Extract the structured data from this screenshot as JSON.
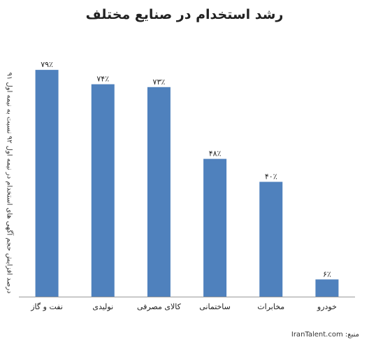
{
  "chart_data": {
    "type": "bar",
    "title": "رشد استخدام در صنایع مختلف",
    "ylabel": "درصد افزایش حجم آگهی های استخدام در نیمه اول ۹۲ نسبت به نیمه اول ۹۱",
    "xlabel": "",
    "categories": [
      "نفت و گاز",
      "نولیدی",
      "کالای مصرفی",
      "ساختمانی",
      "مخابرات",
      "خودرو"
    ],
    "values": [
      79,
      74,
      73,
      48,
      40,
      6
    ],
    "data_labels": [
      "۷۹٪",
      "۷۴٪",
      "۷۳٪",
      "۴۸٪",
      "۴۰٪",
      "۶٪"
    ],
    "ylim": [
      0,
      80
    ],
    "grid": false,
    "legend": "none",
    "bar_color": "#4f81bd"
  },
  "source": {
    "label": "منبع:",
    "value": "IranTalent.com"
  }
}
